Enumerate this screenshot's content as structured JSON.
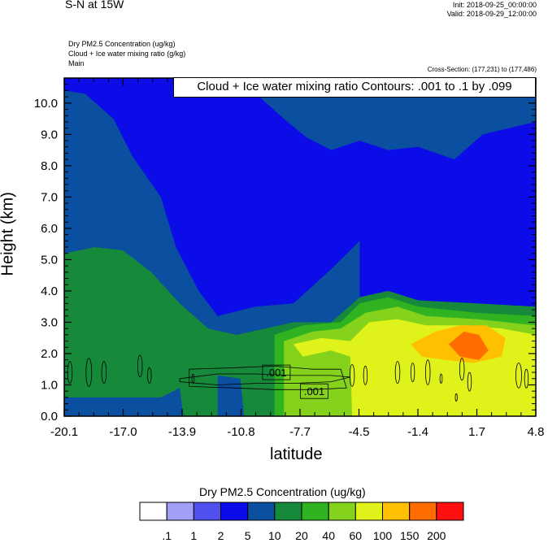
{
  "header": {
    "title": "S-N at 15W",
    "init": "Init: 2018-09-25_00:00:00",
    "valid": "Valid: 2018-09-29_12:00:00",
    "fields": [
      "Dry PM2.5 Concentration   (ug/kg)",
      "Cloud + Ice water mixing ratio   (g/kg)",
      "Main"
    ],
    "cross_section": "Cross-Section: (177,231) to (177,486)"
  },
  "contour_note": "Cloud + Ice water mixing ratio Contours: .001 to .1 by .099",
  "colorbar": {
    "title": "Dry PM2.5 Concentration  (ug/kg)",
    "labels": [
      ".1",
      "1",
      "2",
      "5",
      "10",
      "20",
      "40",
      "60",
      "100",
      "150",
      "200"
    ],
    "colors": [
      "#ffffff",
      "#a0a0f7",
      "#5050ef",
      "#0c0ce8",
      "#0a4fa0",
      "#168a3a",
      "#2fb320",
      "#84d21c",
      "#dff21a",
      "#ffc000",
      "#ff6c00",
      "#ff1010"
    ]
  },
  "chart_data": {
    "type": "heatmap",
    "xlabel": "latitude",
    "ylabel": "Height (km)",
    "x_ticks": [
      "-20.1",
      "-17.0",
      "-13.9",
      "-10.8",
      "-7.7",
      "-4.5",
      "-1.4",
      "1.7",
      "4.8"
    ],
    "y_ticks": [
      "0.0",
      "1.0",
      "2.0",
      "3.0",
      "4.0",
      "5.0",
      "6.0",
      "7.0",
      "8.0",
      "9.0",
      "10.0"
    ],
    "xlim": [
      -20.1,
      4.8
    ],
    "ylim": [
      0,
      10.8
    ],
    "contour_labels": [
      {
        "text": ".001",
        "x": -8.9,
        "y": 1.4
      },
      {
        "text": ".001",
        "x": -6.9,
        "y": 0.8
      }
    ],
    "regions": [
      {
        "name": "upper-blue",
        "level": "5",
        "color": "#0c0ce8",
        "points": [
          [
            -20.1,
            10.8
          ],
          [
            4.8,
            10.8
          ],
          [
            4.8,
            5.3
          ],
          [
            -1.4,
            5.6
          ],
          [
            -4.5,
            5.6
          ],
          [
            -6.0,
            4.7
          ],
          [
            -8.0,
            3.6
          ],
          [
            -10.0,
            3.5
          ],
          [
            -12.0,
            3.2
          ],
          [
            -13.0,
            4.0
          ],
          [
            -14.2,
            5.4
          ],
          [
            -15.0,
            7.0
          ],
          [
            -16.5,
            8.3
          ],
          [
            -17.5,
            9.5
          ],
          [
            -19.0,
            10.3
          ],
          [
            -20.1,
            10.4
          ]
        ]
      },
      {
        "name": "left-dark-blue",
        "level": "10",
        "color": "#0a4fa0",
        "points": [
          [
            -20.1,
            10.4
          ],
          [
            -19.0,
            10.3
          ],
          [
            -17.5,
            9.5
          ],
          [
            -16.5,
            8.3
          ],
          [
            -15.0,
            7.0
          ],
          [
            -14.2,
            5.4
          ],
          [
            -13.0,
            4.0
          ],
          [
            -12.0,
            3.2
          ],
          [
            -10.0,
            3.5
          ],
          [
            -8.0,
            3.6
          ],
          [
            -6.0,
            4.7
          ],
          [
            -4.5,
            5.6
          ],
          [
            -4.5,
            3.8
          ],
          [
            -6.0,
            3.0
          ],
          [
            -8.0,
            3.0
          ],
          [
            -11.0,
            2.6
          ],
          [
            -12.5,
            2.8
          ],
          [
            -14.0,
            3.6
          ],
          [
            -15.5,
            4.6
          ],
          [
            -17.0,
            5.3
          ],
          [
            -18.5,
            5.4
          ],
          [
            -20.1,
            5.2
          ]
        ]
      },
      {
        "name": "upper-dark-blue",
        "level": "10",
        "color": "#0a4fa0",
        "points": [
          [
            -11.6,
            10.8
          ],
          [
            -10.8,
            10.5
          ],
          [
            -9.8,
            10.2
          ],
          [
            -8.5,
            9.5
          ],
          [
            -7.3,
            8.9
          ],
          [
            -6.0,
            8.5
          ],
          [
            -4.5,
            8.8
          ],
          [
            -3.0,
            8.5
          ],
          [
            -1.4,
            8.6
          ],
          [
            0.5,
            8.2
          ],
          [
            2.0,
            9.0
          ],
          [
            4.8,
            9.4
          ],
          [
            4.8,
            10.8
          ]
        ]
      },
      {
        "name": "left-green",
        "level": "20",
        "color": "#168a3a",
        "points": [
          [
            -20.1,
            5.2
          ],
          [
            -18.5,
            5.4
          ],
          [
            -17.0,
            5.3
          ],
          [
            -15.5,
            4.6
          ],
          [
            -14.0,
            3.6
          ],
          [
            -12.5,
            2.8
          ],
          [
            -11.0,
            2.6
          ],
          [
            -8.0,
            3.0
          ],
          [
            -6.0,
            3.0
          ],
          [
            -4.5,
            3.8
          ],
          [
            -3.0,
            4.0
          ],
          [
            -1.4,
            3.7
          ],
          [
            1.7,
            3.6
          ],
          [
            4.8,
            3.5
          ],
          [
            4.8,
            0
          ],
          [
            -20.1,
            0
          ]
        ]
      },
      {
        "name": "light-green",
        "level": "40",
        "color": "#2fb320",
        "points": [
          [
            -9.0,
            2.6
          ],
          [
            -7.5,
            2.9
          ],
          [
            -5.5,
            3.0
          ],
          [
            -4.5,
            3.6
          ],
          [
            -3.0,
            3.8
          ],
          [
            -1.4,
            3.5
          ],
          [
            1.7,
            3.3
          ],
          [
            4.8,
            3.2
          ],
          [
            4.8,
            0
          ],
          [
            -9.0,
            0
          ]
        ]
      },
      {
        "name": "lime",
        "level": "60",
        "color": "#84d21c",
        "points": [
          [
            -8.5,
            2.4
          ],
          [
            -7.0,
            2.7
          ],
          [
            -5.5,
            2.8
          ],
          [
            -4.2,
            3.3
          ],
          [
            -2.5,
            3.5
          ],
          [
            -1.0,
            3.2
          ],
          [
            1.7,
            3.1
          ],
          [
            4.8,
            2.9
          ],
          [
            4.8,
            0
          ],
          [
            -8.5,
            0
          ]
        ]
      },
      {
        "name": "yellow",
        "level": "100",
        "color": "#dff21a",
        "points": [
          [
            -8.0,
            2.3
          ],
          [
            -6.5,
            2.5
          ],
          [
            -5.0,
            2.4
          ],
          [
            -4.0,
            3.0
          ],
          [
            -2.5,
            3.1
          ],
          [
            -1.0,
            2.9
          ],
          [
            1.0,
            2.9
          ],
          [
            3.0,
            2.8
          ],
          [
            4.8,
            2.6
          ],
          [
            4.8,
            0
          ],
          [
            -4.9,
            0
          ],
          [
            -5.0,
            1.9
          ],
          [
            -6.0,
            2.1
          ],
          [
            -7.5,
            1.9
          ]
        ]
      },
      {
        "name": "orange",
        "level": "150",
        "color": "#ffc000",
        "points": [
          [
            -1.8,
            2.3
          ],
          [
            -0.5,
            2.7
          ],
          [
            0.8,
            2.9
          ],
          [
            2.2,
            2.9
          ],
          [
            3.2,
            2.5
          ],
          [
            3.0,
            1.9
          ],
          [
            1.5,
            1.7
          ],
          [
            0,
            1.8
          ],
          [
            -1.2,
            1.9
          ]
        ]
      },
      {
        "name": "dark-orange",
        "level": "200",
        "color": "#ff6c00",
        "points": [
          [
            0.2,
            2.3
          ],
          [
            1.0,
            2.7
          ],
          [
            1.8,
            2.6
          ],
          [
            2.3,
            2.1
          ],
          [
            1.8,
            1.8
          ],
          [
            0.8,
            1.9
          ]
        ]
      },
      {
        "name": "bottom-blue-left",
        "level": "10",
        "color": "#0a4fa0",
        "points": [
          [
            -20.1,
            0.6
          ],
          [
            -15.0,
            0.6
          ],
          [
            -14.0,
            0.9
          ],
          [
            -13.8,
            0
          ],
          [
            -20.1,
            0
          ]
        ]
      },
      {
        "name": "bottom-blue-mid",
        "level": "10",
        "color": "#0a4fa0",
        "points": [
          [
            -12.0,
            1.3
          ],
          [
            -10.8,
            1.2
          ],
          [
            -10.6,
            0
          ],
          [
            -12.0,
            0
          ]
        ]
      }
    ]
  }
}
